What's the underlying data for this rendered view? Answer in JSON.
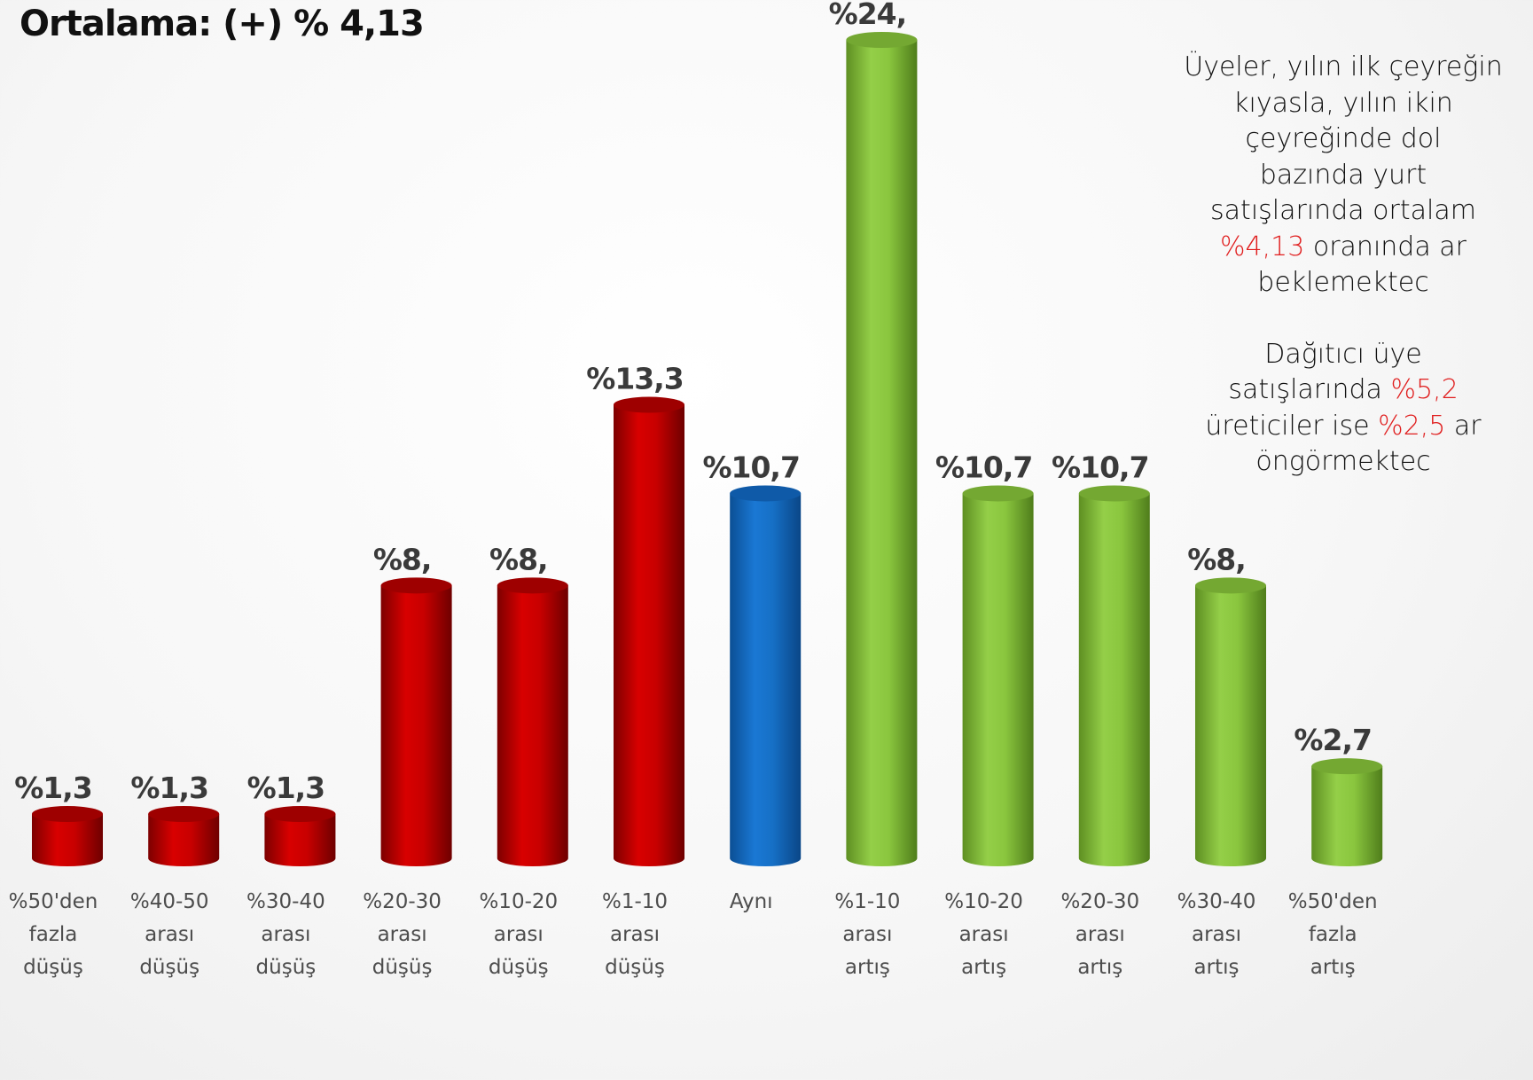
{
  "title": "Ortalama: (+) % 4,13",
  "note": {
    "p1_a": "Üyeler, yılın ilk çeyreğin\nkıyasla, yılın ikin\nçeyreğinde dol\nbazında yurt\nsatışlarında ortalam\n",
    "p1_hl": "%4,13",
    "p1_b": "  oranında ar\nbeklemektec",
    "p2_a": "Dağıtıcı üye\nsatışlarında ",
    "p2_hl1": "%5,2",
    "p2_b": "\nüreticiler ise ",
    "p2_hl2": "%2,5",
    "p2_c": " ar\nöngörmektec"
  },
  "colors": {
    "decrease": "#c00000",
    "same": "#1570c8",
    "increase": "#8cc63e"
  },
  "chart_data": {
    "type": "bar",
    "title": "Ortalama: (+) % 4,13",
    "ylim": [
      0,
      24
    ],
    "categories": [
      [
        "%50'den",
        "fazla",
        "düşüş"
      ],
      [
        "%40-50",
        "arası",
        "düşüş"
      ],
      [
        "%30-40",
        "arası",
        "düşüş"
      ],
      [
        "%20-30",
        "arası",
        "düşüş"
      ],
      [
        "%10-20",
        "arası",
        "düşüş"
      ],
      [
        "%1-10",
        "arası",
        "düşüş"
      ],
      [
        "Aynı"
      ],
      [
        "%1-10",
        "arası",
        "artış"
      ],
      [
        "%10-20",
        "arası",
        "artış"
      ],
      [
        "%20-30",
        "arası",
        "artış"
      ],
      [
        "%30-40",
        "arası",
        "artış"
      ],
      [
        "%50'den",
        "fazla",
        "artış"
      ]
    ],
    "values": [
      1.3,
      1.3,
      1.3,
      8,
      8,
      13.3,
      10.7,
      24,
      10.7,
      10.7,
      8,
      2.7
    ],
    "labels": [
      "%1,3",
      "%1,3",
      "%1,3",
      "%8,",
      "%8,",
      "%13,3",
      "%10,7",
      "%24,",
      "%10,7",
      "%10,7",
      "%8,",
      "%2,7"
    ],
    "groups": [
      "decrease",
      "decrease",
      "decrease",
      "decrease",
      "decrease",
      "decrease",
      "same",
      "increase",
      "increase",
      "increase",
      "increase",
      "increase"
    ]
  }
}
